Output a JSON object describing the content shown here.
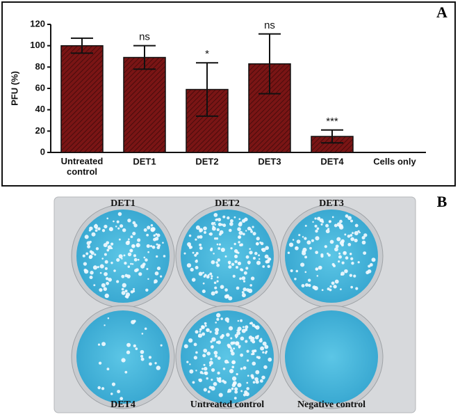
{
  "chart_data": {
    "type": "bar",
    "panel_label": "A",
    "ylabel": "PFU (%)",
    "categories": [
      "Untreated control",
      "DET1",
      "DET2",
      "DET3",
      "DET4",
      "Cells only"
    ],
    "values": [
      100,
      89,
      59,
      83,
      15,
      0
    ],
    "errors": [
      7,
      11,
      25,
      28,
      6,
      null
    ],
    "annotations": [
      null,
      "ns",
      "*",
      "ns",
      "***",
      null
    ],
    "color": "#7a1515",
    "ylim": [
      0,
      120
    ],
    "yticks": [
      0,
      20,
      40,
      60,
      80,
      100,
      120
    ],
    "grid": false
  },
  "plate": {
    "panel_label": "B",
    "wells": [
      "DET1",
      "DET2",
      "DET3",
      "DET4",
      "Untreated control",
      "Negative control"
    ]
  }
}
